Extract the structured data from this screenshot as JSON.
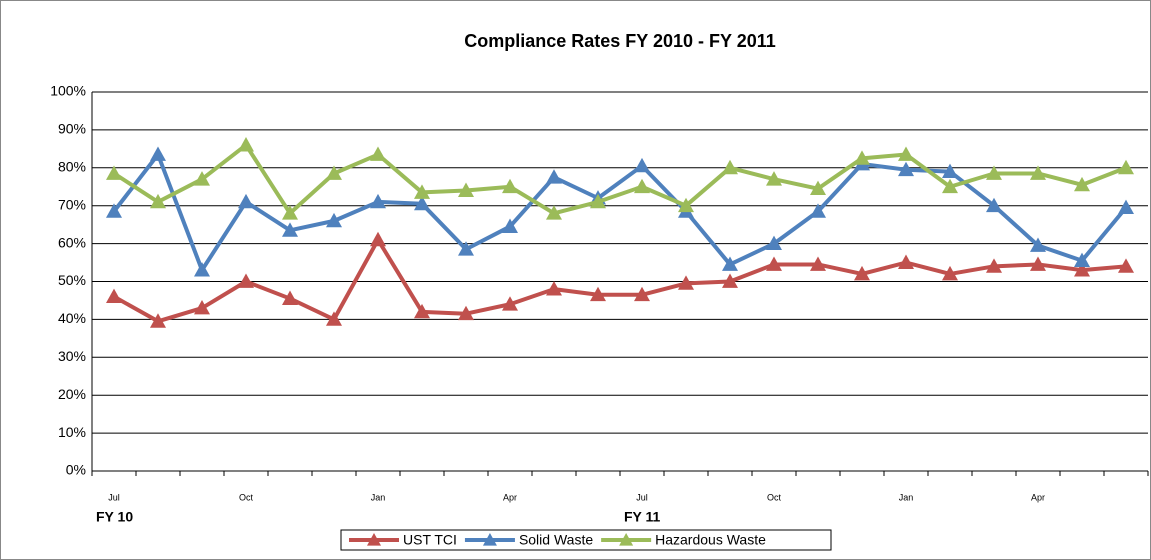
{
  "chart_data": {
    "type": "line",
    "title": "Compliance Rates FY 2010 - FY 2011",
    "categories": [
      "Jul",
      null,
      null,
      "Oct",
      null,
      null,
      "Jan",
      null,
      null,
      "Apr",
      null,
      null,
      "Jul",
      null,
      null,
      "Oct",
      null,
      null,
      "Jan",
      null,
      null,
      "Apr",
      null,
      null
    ],
    "group_labels": [
      "FY 10",
      "FY 11"
    ],
    "series": [
      {
        "name": "UST TCI",
        "color": "#c0504d",
        "values": [
          46,
          39.5,
          43,
          50,
          45.5,
          40,
          61,
          42,
          41.5,
          44,
          48,
          46.5,
          46.5,
          49.5,
          50,
          54.5,
          54.5,
          52,
          55,
          52,
          54,
          54.5,
          53,
          54
        ]
      },
      {
        "name": "Solid Waste",
        "color": "#4f81bd",
        "values": [
          68.5,
          83.5,
          53,
          71,
          63.5,
          66,
          71,
          70.5,
          58.5,
          64.5,
          77.5,
          72,
          80.5,
          68.5,
          54.5,
          60,
          68.5,
          81,
          79.5,
          79,
          70,
          59.5,
          55.5,
          69.5
        ]
      },
      {
        "name": "Hazardous Waste",
        "color": "#9bbb59",
        "values": [
          78.5,
          71,
          77,
          86,
          68,
          78.5,
          83.5,
          73.5,
          74,
          75,
          68,
          71,
          75,
          70,
          80,
          77,
          74.5,
          82.5,
          83.5,
          75,
          78.5,
          78.5,
          75.5,
          80
        ]
      }
    ],
    "ylim": [
      0,
      100
    ],
    "yticks": [
      {
        "value": 0,
        "label": "0%"
      },
      {
        "value": 10,
        "label": "10%"
      },
      {
        "value": 20,
        "label": "20%"
      },
      {
        "value": 30,
        "label": "30%"
      },
      {
        "value": 40,
        "label": "40%"
      },
      {
        "value": 50,
        "label": "50%"
      },
      {
        "value": 60,
        "label": "60%"
      },
      {
        "value": 70,
        "label": "70%"
      },
      {
        "value": 80,
        "label": "80%"
      },
      {
        "value": 90,
        "label": "90%"
      },
      {
        "value": 100,
        "label": "100%"
      }
    ],
    "grid": true,
    "legend": "bottom"
  }
}
